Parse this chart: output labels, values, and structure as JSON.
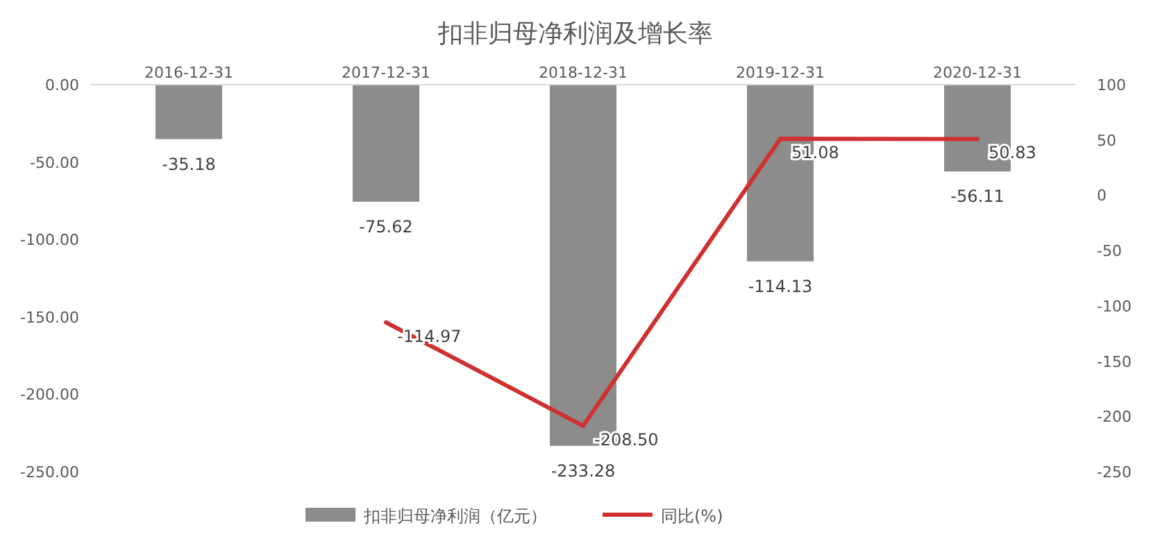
{
  "chart_data": {
    "type": "bar",
    "title": "扣非归母净利润及增长率",
    "categories": [
      "2016-12-31",
      "2017-12-31",
      "2018-12-31",
      "2019-12-31",
      "2020-12-31"
    ],
    "series": [
      {
        "name": "扣非归母净利润（亿元）",
        "color": "#8c8c8c",
        "values": [
          -35.18,
          -75.62,
          -233.28,
          -114.13,
          -56.11
        ]
      },
      {
        "name": "同比(%)",
        "type": "line",
        "axis": "y2",
        "color": "#d03030",
        "values": [
          null,
          -114.97,
          -208.5,
          51.08,
          50.83
        ],
        "value_labels": [
          null,
          "-114.97",
          "-208.50",
          "51.08",
          "50.83"
        ]
      }
    ],
    "ylim": [
      -250,
      0
    ],
    "yticks": [
      {
        "value": 0,
        "label": "0.00"
      },
      {
        "value": -50,
        "label": "-50.00"
      },
      {
        "value": -100,
        "label": "-100.00"
      },
      {
        "value": -150,
        "label": "-150.00"
      },
      {
        "value": -200,
        "label": "-200.00"
      },
      {
        "value": -250,
        "label": "-250.00"
      }
    ],
    "y2lim": [
      -250,
      100
    ],
    "y2ticks": [
      100,
      50,
      0,
      -50,
      -100,
      -150,
      -200,
      -250
    ],
    "data_labels": true,
    "legend": "bottom",
    "grid": false
  }
}
